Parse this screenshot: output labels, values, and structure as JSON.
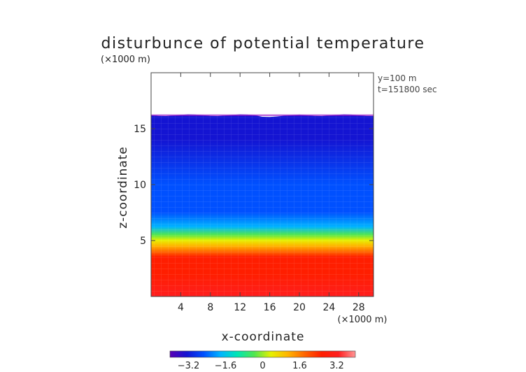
{
  "chart_data": {
    "type": "heatmap",
    "title": "disturbunce of potential temperature",
    "xlabel": "x-coordinate",
    "ylabel": "z-coordinate",
    "x_unit": "(×1000 m)",
    "y_unit": "(×1000 m)",
    "annotations": [
      "y=100 m",
      "t=151800 sec"
    ],
    "xlim": [
      0,
      30
    ],
    "ylim": [
      0,
      20
    ],
    "x_ticks": [
      4,
      8,
      12,
      16,
      20,
      24,
      28
    ],
    "y_ticks": [
      5,
      10,
      15
    ],
    "colorbar": {
      "range": [
        -4,
        4
      ],
      "ticks": [
        "−3.2",
        "−1.6",
        "0",
        "1.6",
        "3.2"
      ],
      "tick_values": [
        -3.2,
        -1.6,
        0,
        1.6,
        3.2
      ],
      "colors": [
        "#5a00b4",
        "#1414d2",
        "#0050ff",
        "#00b4ff",
        "#00e6b4",
        "#50e650",
        "#e6f000",
        "#ffb400",
        "#ff6400",
        "#ff1e00",
        "#ff1e1e",
        "#ff9696"
      ]
    },
    "field": {
      "data_top_km": 16.2,
      "z_km": [
        0,
        2,
        3.5,
        4.5,
        5,
        5.5,
        6.2,
        7.5,
        10,
        14,
        16
      ],
      "disturbance_K": [
        3.3,
        2.9,
        2.2,
        1.3,
        0.6,
        -0.2,
        -1.5,
        -2.6,
        -2.9,
        -3.0,
        -3.1
      ]
    }
  }
}
